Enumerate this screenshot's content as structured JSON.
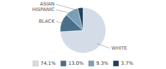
{
  "chart_data": {
    "type": "pie",
    "categories": [
      "WHITE",
      "BLACK",
      "HISPANIC",
      "ASIAN"
    ],
    "values": [
      74.1,
      13.0,
      9.3,
      3.7
    ],
    "value_labels": [
      "74.1%",
      "13.0%",
      "9.3%",
      "3.7%"
    ],
    "colors": [
      "#d4dce8",
      "#4a6f8a",
      "#7a9fb8",
      "#1e3f5c"
    ],
    "legend": "bottom"
  }
}
